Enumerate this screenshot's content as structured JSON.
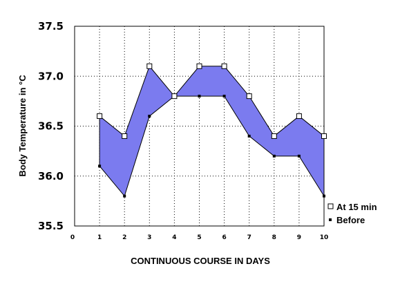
{
  "chart_data": {
    "type": "area",
    "x": [
      1,
      2,
      3,
      4,
      5,
      6,
      7,
      8,
      9,
      10
    ],
    "series": [
      {
        "name": "At 15 min",
        "values": [
          36.6,
          36.4,
          37.1,
          36.8,
          37.1,
          37.1,
          36.8,
          36.4,
          36.6,
          36.4
        ],
        "marker": "open-square"
      },
      {
        "name": "Before",
        "values": [
          36.1,
          35.8,
          36.6,
          36.8,
          36.8,
          36.8,
          36.4,
          36.2,
          36.2,
          35.8
        ],
        "marker": "filled-square"
      }
    ],
    "fill_between_color": "#7b7bef",
    "xlabel": "CONTINUOUS COURSE IN DAYS",
    "ylabel": "Body Temperature in °C",
    "xlim": [
      0,
      10
    ],
    "ylim": [
      35.5,
      37.5
    ],
    "x_ticks": [
      "0",
      "1",
      "2",
      "3",
      "4",
      "5",
      "6",
      "7",
      "8",
      "9",
      "10"
    ],
    "y_ticks": [
      "35.5",
      "36.0",
      "36.5",
      "37.0",
      "37.5"
    ],
    "grid": true,
    "legend_position": "right"
  }
}
